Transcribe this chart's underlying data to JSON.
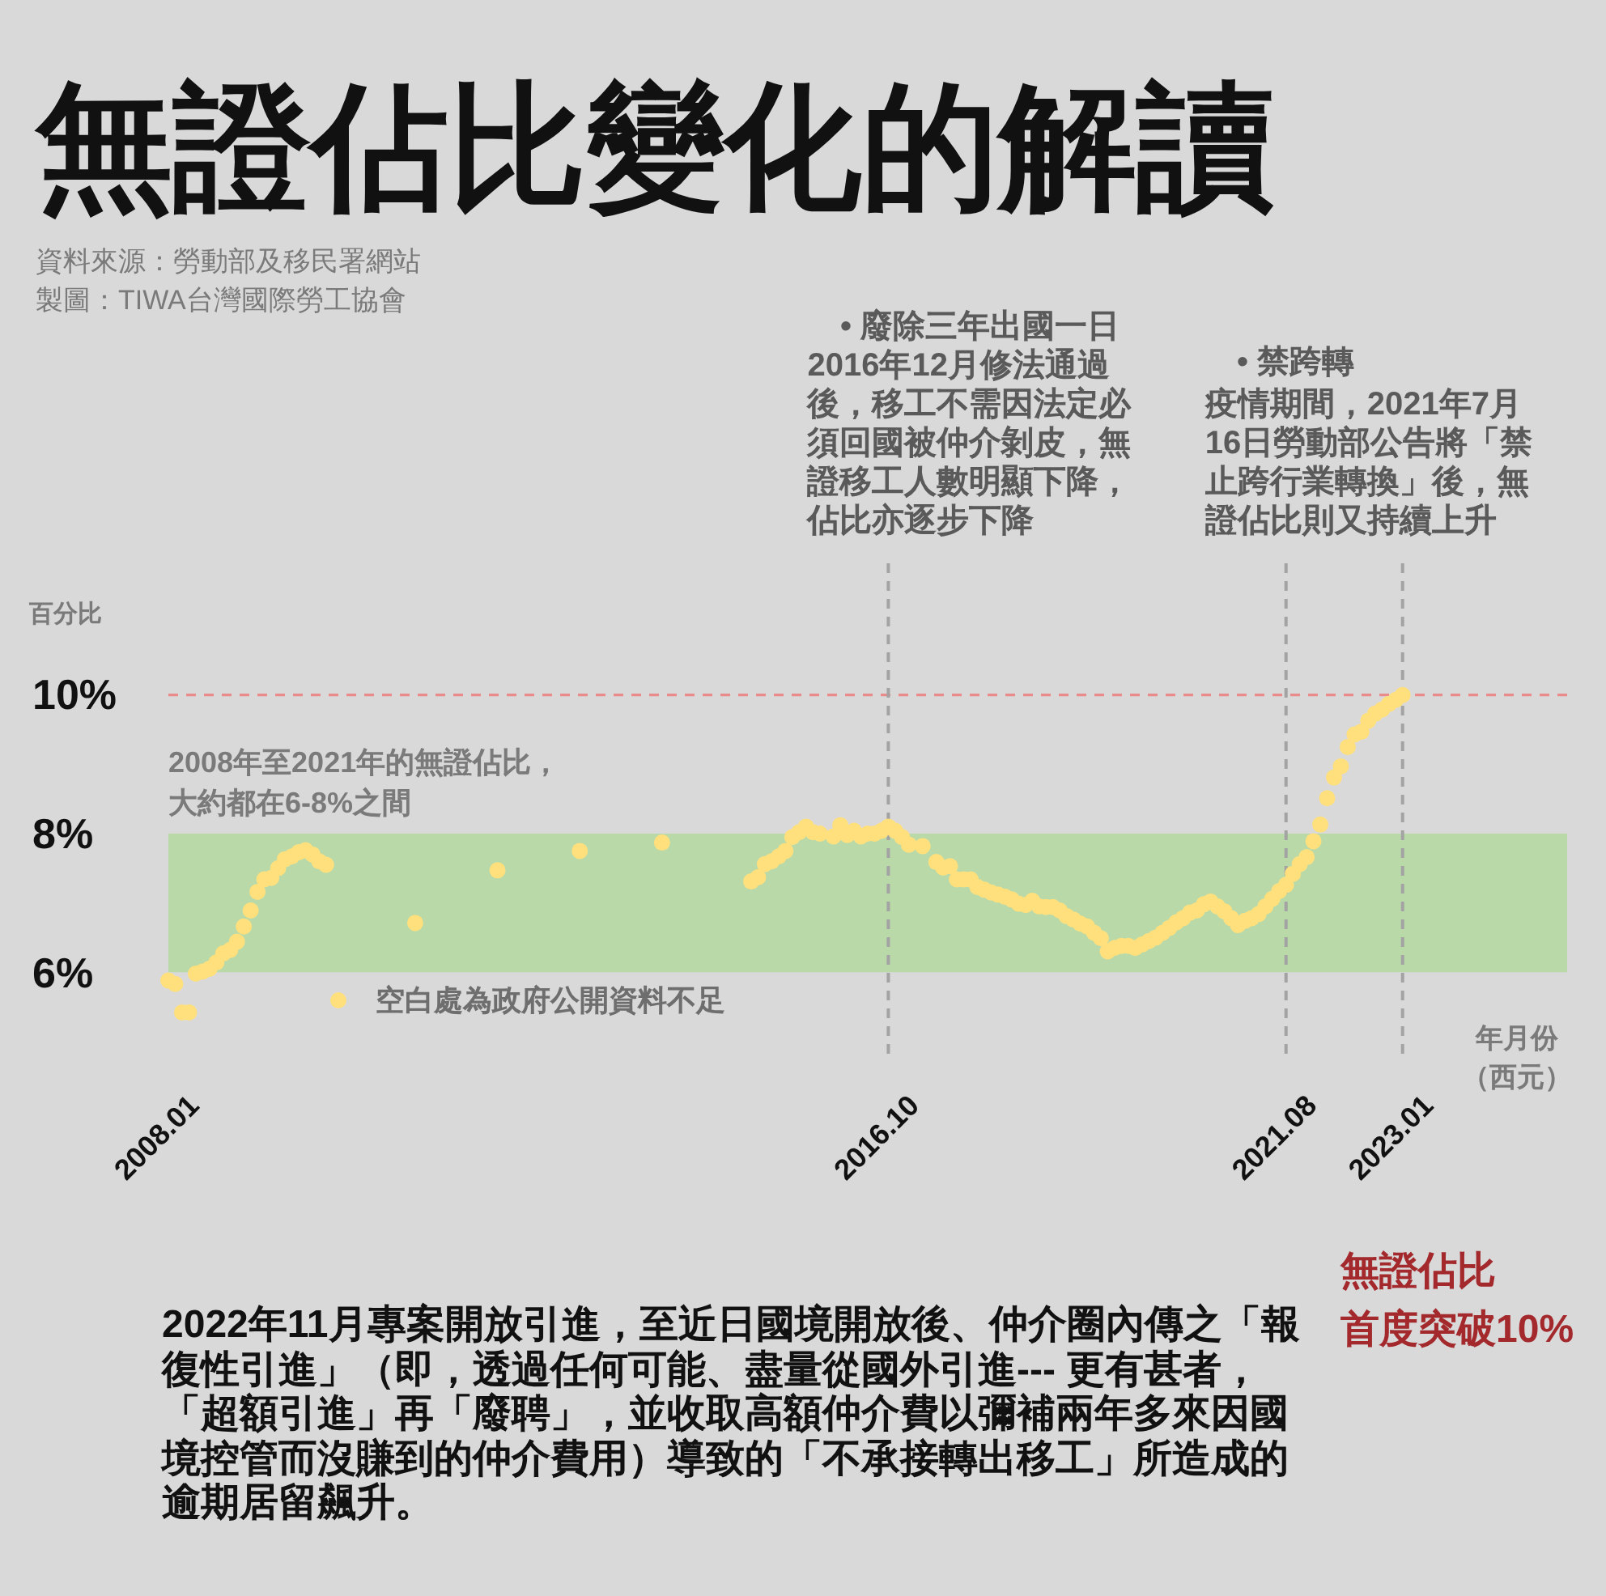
{
  "chart_data": {
    "type": "scatter",
    "title": "無證佔比變化的解讀",
    "ylabel": "百分比",
    "xlabel": "年月份（西元）",
    "annotations": [
      "資料來源：勞動部及移民署網站",
      "製圖：TIWA台灣國際勞工協會",
      "• 廢除三年出國一日",
      "• 禁跨轉",
      "無證佔比",
      "首度突破10%",
      "2022年11月專案開放引進，至近日國境開放後、仲介圈內傳之「報復性引進」（即，透過任何可能、盡量從國外引進--- 更有甚者，「超額引進」再「廢聘」，並收取高額仲介費以彌補兩年多來因國境控管而沒賺到的仲介費用）導致的「不承接轉出移工」所造成的逾期居留飆升。"
    ],
    "xlim": [
      "2008-01",
      "2025-01"
    ],
    "ylim": [
      4.8,
      11.9
    ],
    "xticks": [
      {
        "value": "2008-01",
        "label": "2008.01"
      },
      {
        "value": "2016-10",
        "label": "2016.10"
      },
      {
        "value": "2021-08",
        "label": "2021.08"
      },
      {
        "value": "2023-01",
        "label": "2023.01"
      }
    ],
    "yticks": [
      {
        "value": 6,
        "label": "6%"
      },
      {
        "value": 8,
        "label": "8%"
      },
      {
        "value": 10,
        "label": "10%"
      }
    ],
    "bands": [
      {
        "axis": "y",
        "from": 6,
        "to": 8,
        "label": "2008年至2021年的無證佔比，大約都在6-8%之間",
        "color": "#b9d9a9"
      }
    ],
    "ref_lines": [
      {
        "axis": "y",
        "value": 10,
        "color": "#ea8b8b",
        "line_style": "dashed"
      },
      {
        "axis": "x",
        "value": "2016-10",
        "label": "2016年12月修法通過後，移工不需因法定必須回國被仲介剝皮，無證移工人數明顯下降，佔比亦逐步下降",
        "color": "#a3a3a3",
        "line_style": "dashed"
      },
      {
        "axis": "x",
        "value": "2021-08",
        "label": "疫情期間，2021年7月16日勞動部公告將「禁止跨行業轉換」後，無證佔比則又持續上升",
        "color": "#a3a3a3",
        "line_style": "dashed"
      },
      {
        "axis": "x",
        "value": "2023-01",
        "color": "#a3a3a3",
        "line_style": "dashed"
      }
    ],
    "legend": "bottom left",
    "series": [
      {
        "name": "空白處為政府公開資料不足",
        "color": "#ffe07c",
        "marker": "circle",
        "x": [
          "2008-01",
          "2008-02",
          "2008-03",
          "2008-04",
          "2008-05",
          "2008-06",
          "2008-07",
          "2008-08",
          "2008-09",
          "2008-10",
          "2008-11",
          "2008-12",
          "2009-01",
          "2009-02",
          "2009-03",
          "2009-04",
          "2009-05",
          "2009-06",
          "2009-07",
          "2009-08",
          "2009-09",
          "2009-10",
          "2009-11",
          "2009-12",
          "2011-01",
          "2012-01",
          "2013-01",
          "2014-01",
          "2015-02",
          "2015-03",
          "2015-04",
          "2015-05",
          "2015-06",
          "2015-07",
          "2015-08",
          "2015-09",
          "2015-10",
          "2015-11",
          "2015-12",
          "2016-02",
          "2016-03",
          "2016-04",
          "2016-05",
          "2016-06",
          "2016-07",
          "2016-08",
          "2016-09",
          "2016-10",
          "2016-11",
          "2016-12",
          "2017-01",
          "2017-03",
          "2017-05",
          "2017-06",
          "2017-07",
          "2017-08",
          "2017-09",
          "2017-10",
          "2017-11",
          "2017-12",
          "2018-01",
          "2018-02",
          "2018-03",
          "2018-04",
          "2018-05",
          "2018-06",
          "2018-07",
          "2018-08",
          "2018-09",
          "2018-10",
          "2018-11",
          "2018-12",
          "2019-01",
          "2019-02",
          "2019-03",
          "2019-04",
          "2019-05",
          "2019-06",
          "2019-07",
          "2019-08",
          "2019-09",
          "2019-10",
          "2019-11",
          "2019-12",
          "2020-01",
          "2020-02",
          "2020-03",
          "2020-04",
          "2020-05",
          "2020-06",
          "2020-07",
          "2020-08",
          "2020-09",
          "2020-10",
          "2020-11",
          "2020-12",
          "2021-01",
          "2021-02",
          "2021-03",
          "2021-04",
          "2021-05",
          "2021-06",
          "2021-07",
          "2021-08",
          "2021-09",
          "2021-10",
          "2021-11",
          "2021-12",
          "2022-01",
          "2022-02",
          "2022-03",
          "2022-04",
          "2022-05",
          "2022-06",
          "2022-07",
          "2022-08",
          "2022-09",
          "2022-10",
          "2022-11",
          "2022-12",
          "2023-01"
        ],
        "values": [
          5.88,
          5.83,
          5.42,
          5.42,
          5.98,
          6.01,
          6.05,
          6.14,
          6.27,
          6.32,
          6.44,
          6.66,
          6.89,
          7.16,
          7.34,
          7.36,
          7.5,
          7.63,
          7.67,
          7.73,
          7.76,
          7.7,
          7.6,
          7.55,
          6.71,
          7.47,
          7.75,
          7.87,
          7.31,
          7.37,
          7.56,
          7.6,
          7.67,
          7.75,
          7.95,
          8.02,
          8.1,
          8.02,
          8.0,
          7.96,
          8.12,
          7.98,
          8.04,
          7.96,
          8.0,
          8.0,
          8.04,
          8.1,
          8.04,
          7.95,
          7.84,
          7.82,
          7.59,
          7.51,
          7.53,
          7.34,
          7.34,
          7.34,
          7.23,
          7.19,
          7.15,
          7.12,
          7.09,
          7.05,
          6.99,
          6.97,
          7.03,
          6.95,
          6.94,
          6.94,
          6.89,
          6.81,
          6.76,
          6.7,
          6.66,
          6.57,
          6.49,
          6.3,
          6.35,
          6.38,
          6.38,
          6.35,
          6.4,
          6.45,
          6.5,
          6.57,
          6.64,
          6.72,
          6.78,
          6.86,
          6.89,
          6.98,
          7.02,
          6.95,
          6.88,
          6.78,
          6.68,
          6.74,
          6.78,
          6.84,
          6.95,
          7.06,
          7.17,
          7.26,
          7.42,
          7.56,
          7.66,
          7.89,
          8.13,
          8.51,
          8.81,
          8.97,
          9.25,
          9.43,
          9.47,
          9.63,
          9.73,
          9.79,
          9.87,
          9.93,
          10.0
        ]
      }
    ]
  }
}
